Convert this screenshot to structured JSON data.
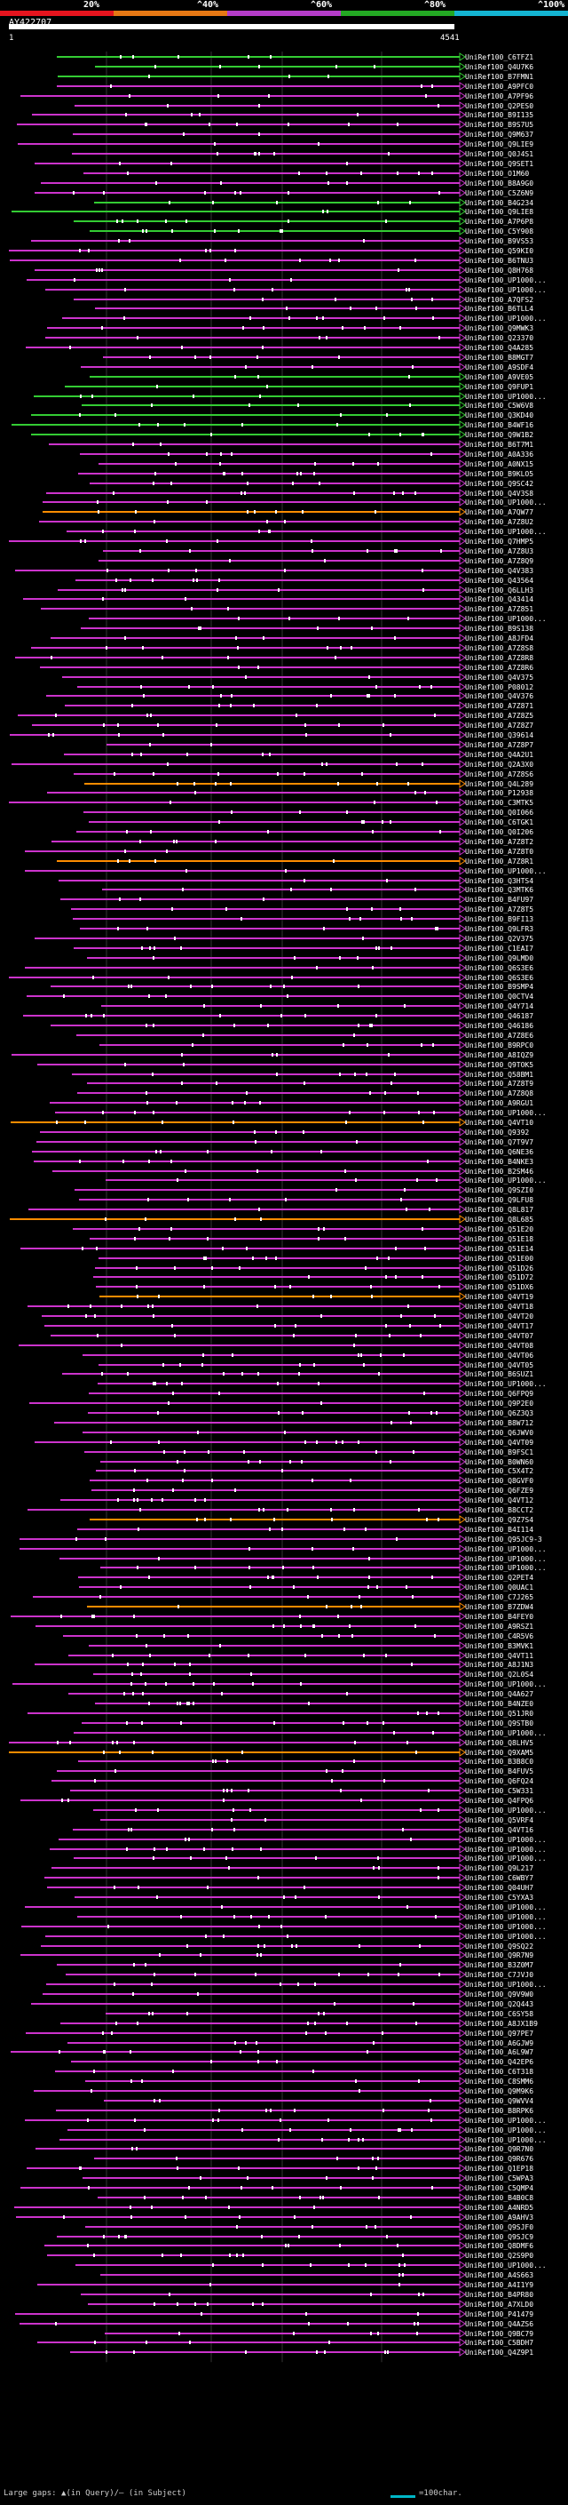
{
  "query": {
    "id": "AY422707",
    "start": "1",
    "end": "4541"
  },
  "scale": {
    "labels": [
      "20%",
      "^40%",
      "^60%",
      "^80%",
      "^100%"
    ],
    "colors": [
      "#e6141e",
      "#e67814",
      "#b43cc8",
      "#23a823",
      "#14b4d2"
    ]
  },
  "colors": {
    "pink": "#cc33cc",
    "orange": "#ff8c00",
    "green": "#33cc33",
    "white": "#ffffff"
  },
  "hits": [
    "UniRef100_C6TFZ1",
    "UniRef100_Q4U7K6",
    "UniRef100_B7FMN1",
    "UniRef100_A9PFC0",
    "UniRef100_A7PF96",
    "UniRef100_Q2PES0",
    "UniRef100_B9I135",
    "UniRef100_B9S7U5",
    "UniRef100_Q9M637",
    "UniRef100_Q9LIE9",
    "UniRef100_Q0J4S1",
    "UniRef100_Q9SET1",
    "UniRef100_O1M60",
    "UniRef100_B8A9G0",
    "UniRef100_C5Z6N9",
    "UniRef100_B4G234",
    "UniRef100_Q9LIE8",
    "UniRef100_A7P6P8",
    "UniRef100_C5Y908",
    "UniRef100_B9VS53",
    "UniRef100_Q59KI0",
    "UniRef100_B6TNU3",
    "UniRef100_Q8H768",
    "UniRef100_UP1000...",
    "UniRef100_UP1000...",
    "UniRef100_A7QFS2",
    "UniRef100_B6TLL4",
    "UniRef100_UP1000...",
    "UniRef100_Q9MWK3",
    "UniRef100_Q23370",
    "UniRef100_Q4A285",
    "UniRef100_B8MGT7",
    "UniRef100_A9SDF4",
    "UniRef100_A9VE05",
    "UniRef100_Q9FUP1",
    "UniRef100_UP1000...",
    "UniRef100_C5W6V8",
    "UniRef100_Q3KD40",
    "UniRef100_B4WF16",
    "UniRef100_Q9W1B2",
    "UniRef100_B6T7M1",
    "UniRef100_A0A336",
    "UniRef100_A0NX15",
    "UniRef100_B9KLO5",
    "UniRef100_Q9SC42",
    "UniRef100_Q4V3S8",
    "UniRef100_UP1000...",
    "UniRef100_A7QW77",
    "UniRef100_A7Z8U2",
    "UniRef100_UP1000...",
    "UniRef100_Q7HMP5",
    "UniRef100_A7Z8U3",
    "UniRef100_A7Z8Q9",
    "UniRef100_Q4V383",
    "UniRef100_Q43564",
    "UniRef100_Q6LLH3",
    "UniRef100_Q43414",
    "UniRef100_A7Z851",
    "UniRef100_UP1000...",
    "UniRef100_B9S138",
    "UniRef100_A8JFD4",
    "UniRef100_A7Z8S8",
    "UniRef100_A7Z8R8",
    "UniRef100_A7Z8R6",
    "UniRef100_Q4V375",
    "UniRef100_P08012",
    "UniRef100_Q4V376",
    "UniRef100_A7Z871",
    "UniRef100_A7Z8Z5",
    "UniRef100_A7Z8Z7",
    "UniRef100_Q39614",
    "UniRef100_A7Z8P7",
    "UniRef100_Q4A2U1",
    "UniRef100_Q2A3X0",
    "UniRef100_A7Z8S6",
    "UniRef100_Q4L289",
    "UniRef100_P12938",
    "UniRef100_C3MTK5",
    "UniRef100_Q0I066",
    "UniRef100_C6TGK1",
    "UniRef100_Q0I206",
    "UniRef100_A7Z8T2",
    "UniRef100_A7Z8T0",
    "UniRef100_A7Z8R1",
    "UniRef100_UP1000...",
    "UniRef100_Q3HTS4",
    "UniRef100_Q3MTK6",
    "UniRef100_B4FU97",
    "UniRef100_A7Z8T5",
    "UniRef100_B9FI13",
    "UniRef100_Q9LFR3",
    "UniRef100_Q2V375",
    "UniRef100_C1EAI7",
    "UniRef100_Q9LMD0",
    "UniRef100_Q6S3E6",
    "UniRef100_Q6S3E6",
    "UniRef100_B9SMP4",
    "UniRef100_Q0CTV4",
    "UniRef100_Q4Y714",
    "UniRef100_Q46187",
    "UniRef100_Q46186",
    "UniRef100_A7Z8E6",
    "UniRef100_B9RPC0",
    "UniRef100_A8IQZ9",
    "UniRef100_Q9TOK5",
    "UniRef100_Q58BM1",
    "UniRef100_A7Z8T9",
    "UniRef100_A7Z8Q8",
    "UniRef100_A9RGU1",
    "UniRef100_UP1000...",
    "UniRef100_Q4VT10",
    "UniRef100_Q9392",
    "UniRef100_Q7T9V7",
    "UniRef100_Q6NE36",
    "UniRef100_B4NKE3",
    "UniRef100_B2SM46",
    "UniRef100_UP1000...",
    "UniRef100_Q9SZI0",
    "UniRef100_Q9LFU8",
    "UniRef100_Q8L817",
    "UniRef100_Q8L685",
    "UniRef100_Q51E20",
    "UniRef100_Q51E18",
    "UniRef100_Q51E14",
    "UniRef100_Q51E00",
    "UniRef100_Q51D26",
    "UniRef100_Q51D72",
    "UniRef100_Q51DX6",
    "UniRef100_Q4VT19",
    "UniRef100_Q4VT18",
    "UniRef100_Q4VT20",
    "UniRef100_Q4VT17",
    "UniRef100_Q4VT07",
    "UniRef100_Q4VT08",
    "UniRef100_Q4VT06",
    "UniRef100_Q4VT05",
    "UniRef100_B6SUZ1",
    "UniRef100_UP1000...",
    "UniRef100_Q6FPQ9",
    "UniRef100_Q9P2E0",
    "UniRef100_Q6Z3Q3",
    "UniRef100_B8W712",
    "UniRef100_Q6JWV0",
    "UniRef100_Q4VT09",
    "UniRef100_B9FSC1",
    "UniRef100_B0WN60",
    "UniRef100_C5X4T2",
    "UniRef100_Q8GVF0",
    "UniRef100_Q6FZE9",
    "UniRef100_Q4VT12",
    "UniRef100_B8CCT2",
    "UniRef100_Q9Z7S4",
    "UniRef100_B4I114",
    "UniRef100_Q95JC9-3",
    "UniRef100_UP1000...",
    "UniRef100_UP1000...",
    "UniRef100_UP1000...",
    "UniRef100_Q2PET4",
    "UniRef100_Q0UAC1",
    "UniRef100_C7J265",
    "UniRef100_B7ZDW4",
    "UniRef100_B4FEY0",
    "UniRef100_A9RSZ1",
    "UniRef100_C4R5V6",
    "UniRef100_B3MVK1",
    "UniRef100_Q4VT11",
    "UniRef100_A8J1N3",
    "UniRef100_Q2L0S4",
    "UniRef100_UP1000...",
    "UniRef100_Q4A627",
    "UniRef100_B4NZE0",
    "UniRef100_Q51JR0",
    "UniRef100_Q9STB0",
    "UniRef100_UP1000...",
    "UniRef100_Q8LHV5",
    "UniRef100_Q9XAM5",
    "UniRef100_B3B8C0",
    "UniRef100_B4FUV5",
    "UniRef100_Q6FQ24",
    "UniRef100_C5W331",
    "UniRef100_Q4FPQ6",
    "UniRef100_UP1000...",
    "UniRef100_Q5VRF4",
    "UniRef100_Q4VT16",
    "UniRef100_UP1000...",
    "UniRef100_UP1000...",
    "UniRef100_UP1000...",
    "UniRef100_Q9L217",
    "UniRef100_C6WBY7",
    "UniRef100_Q04UH7",
    "UniRef100_C5YXA3",
    "UniRef100_UP1000...",
    "UniRef100_UP1000...",
    "UniRef100_UP1000...",
    "UniRef100_UP1000...",
    "UniRef100_Q9SQ22",
    "UniRef100_Q9R7N9",
    "UniRef100_B3Z0M7",
    "UniRef100_C7JVJ0",
    "UniRef100_UP1000...",
    "UniRef100_Q9V9W0",
    "UniRef100_Q2Q443",
    "UniRef100_C6SY58",
    "UniRef100_A8JX1B9",
    "UniRef100_Q97PE7",
    "UniRef100_A6GJW9",
    "UniRef100_A6L9W7",
    "UniRef100_Q42EP6",
    "UniRef100_C6T318",
    "UniRef100_C8SMM6",
    "UniRef100_Q9M9K6",
    "UniRef100_Q9WVV4",
    "UniRef100_B8RPK6",
    "UniRef100_UP1000...",
    "UniRef100_UP1000...",
    "UniRef100_UP1000...",
    "UniRef100_Q9R7N0",
    "UniRef100_Q9R676",
    "UniRef100_Q1EP18",
    "UniRef100_C5WPA3",
    "UniRef100_C5QMP4",
    "UniRef100_B4B0C8",
    "UniRef100_A4NRD5",
    "UniRef100_A9AHV3",
    "UniRef100_Q9SJF0",
    "UniRef100_Q9SJC9",
    "UniRef100_Q8DMF6",
    "UniRef100_Q2S9P0",
    "UniRef100_UP1000...",
    "UniRef100_A4S663",
    "UniRef100_A4I1Y9",
    "UniRef100_B4PR80",
    "UniRef100_A7XLD0",
    "UniRef100_P41479",
    "UniRef100_Q4AZS6",
    "UniRef100_Q9BC79",
    "UniRef100_C5BDH7",
    "UniRef100_Q4Z9P1"
  ],
  "footer": {
    "text": "Large gaps: ▲(in Query)/— (in Subject)",
    "legend": "=100char."
  }
}
